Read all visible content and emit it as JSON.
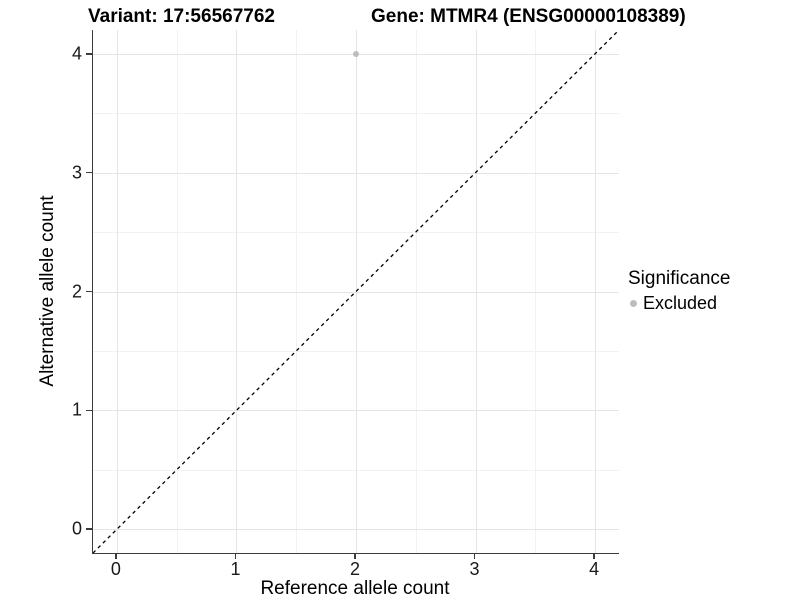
{
  "header": {
    "variant_title": "Variant: 17:56567762",
    "gene_title": "Gene: MTMR4 (ENSG00000108389)"
  },
  "chart_data": {
    "type": "scatter",
    "title_left": "Variant: 17:56567762",
    "title_right": "Gene: MTMR4 (ENSG00000108389)",
    "xlabel": "Reference allele count",
    "ylabel": "Alternative allele count",
    "xlim": [
      -0.2,
      4.2
    ],
    "ylim": [
      -0.2,
      4.2
    ],
    "x_ticks": [
      0,
      1,
      2,
      3,
      4
    ],
    "y_ticks": [
      0,
      1,
      2,
      3,
      4
    ],
    "grid": {
      "major": true,
      "minor": true,
      "major_color": "#e4e4e4",
      "minor_color": "#f2f2f2"
    },
    "series": [
      {
        "name": "Excluded",
        "color": "#bdbdbd",
        "points": [
          [
            2,
            4
          ]
        ]
      }
    ],
    "reference_line": {
      "kind": "identity",
      "slope": 1,
      "intercept": 0,
      "linetype": "dashed",
      "color": "#000000"
    },
    "legend": {
      "title": "Significance",
      "position": "right",
      "entries": [
        {
          "label": "Excluded",
          "color": "#bdbdbd"
        }
      ]
    }
  },
  "colors": {
    "background": "#ffffff",
    "axis_line": "#3c3c3c",
    "text": "#000000",
    "grid_major": "#e4e4e4",
    "grid_minor": "#f2f2f2",
    "point": "#bdbdbd"
  }
}
